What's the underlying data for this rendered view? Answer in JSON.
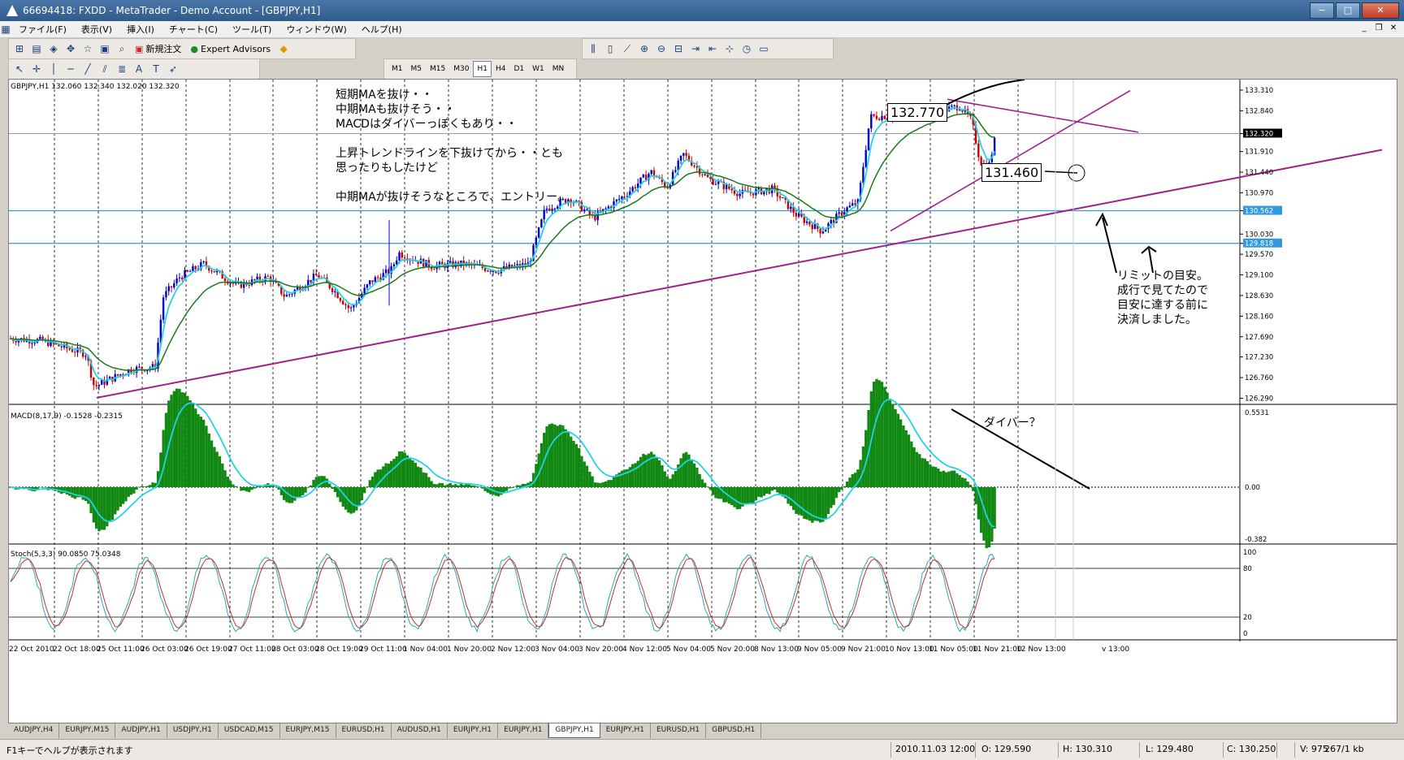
{
  "window": {
    "title": "66694418: FXDD - MetaTrader - Demo Account - [GBPJPY,H1]",
    "min": "−",
    "max": "□",
    "close": "✕"
  },
  "menu": [
    "ファイル(F)",
    "表示(V)",
    "挿入(I)",
    "チャート(C)",
    "ツール(T)",
    "ウィンドウ(W)",
    "ヘルプ(H)"
  ],
  "toolbar": {
    "new_order": "新規注文",
    "expert_advisors": "Expert Advisors",
    "timeframes": [
      "M1",
      "M5",
      "M15",
      "M30",
      "H1",
      "H4",
      "D1",
      "W1",
      "MN"
    ],
    "active_timeframe": "H1"
  },
  "chart": {
    "header": "GBPJPY,H1  132.060 132.340 132.020 132.320",
    "macd_header": "MACD(8,17,9) -0.1528 -0.2315",
    "stoch_header": "Stoch(5,3,3) 90.0850 75.0348",
    "price_axis": [
      "133.310",
      "132.840",
      "132.320",
      "131.910",
      "131.440",
      "130.970",
      "130.562",
      "130.030",
      "129.818",
      "129.570",
      "129.100",
      "128.630",
      "128.160",
      "127.690",
      "127.230",
      "126.760",
      "126.290"
    ],
    "current_price": "132.320",
    "hline_prices": [
      "130.562",
      "129.818"
    ],
    "macd_axis": [
      "0.5531",
      "0.00",
      "-0.382"
    ],
    "stoch_axis": [
      "100",
      "80",
      "20",
      "0"
    ],
    "time_axis": [
      "22 Oct 2010",
      "22 Oct 18:00",
      "25 Oct 11:00",
      "26 Oct 03:00",
      "26 Oct 19:00",
      "27 Oct 11:00",
      "28 Oct 03:00",
      "28 Oct 19:00",
      "29 Oct 11:00",
      "1 Nov 04:00",
      "1 Nov 20:00",
      "2 Nov 12:00",
      "3 Nov 04:00",
      "3 Nov 20:00",
      "4 Nov 12:00",
      "5 Nov 04:00",
      "5 Nov 20:00",
      "8 Nov 13:00",
      "9 Nov 05:00",
      "9 Nov 21:00",
      "10 Nov 13:00",
      "11 Nov 05:00",
      "11 Nov 21:00",
      "12 Nov 13:00"
    ],
    "time_axis_extra": "v 13:00",
    "colors": {
      "bull": "#0000cc",
      "bear": "#cc0000",
      "fast_ma": "#22d3e6",
      "slow_ma": "#1a7a1a",
      "trendline": "#a0208c",
      "hline": "#3399dd",
      "macd_hist": "#118811",
      "signal": "#22d3e6"
    }
  },
  "annotations": {
    "main_text": [
      "短期MAを抜け・・",
      "中期MAも抜けそう・・",
      "MACDはダイバーっぽくもあり・・",
      "",
      "上昇トレンドラインを下抜けてから・・とも",
      "思ったりもしたけど",
      "",
      "中期MAが抜けそうなところで、エントリー。"
    ],
    "label_high": "132.770",
    "label_low": "131.460",
    "limit_text": [
      "リミットの目安。",
      "成行で見てたので",
      "目安に達する前に",
      "決済しました。"
    ],
    "divergence": "ダイバー？"
  },
  "tabs": [
    "AUDJPY,H4",
    "EURJPY,M15",
    "AUDJPY,H1",
    "USDJPY,H1",
    "USDCAD,M15",
    "EURJPY,M15",
    "EURUSD,H1",
    "AUDUSD,H1",
    "EURJPY,H1",
    "EURJPY,H1",
    "GBPJPY,H1",
    "EURJPY,H1",
    "EURUSD,H1",
    "GBPUSD,H1"
  ],
  "active_tab": "GBPJPY,H1",
  "status": {
    "help": "F1キーでヘルプが表示されます",
    "time": "2010.11.03 12:00",
    "open": "O: 129.590",
    "high": "H: 130.310",
    "low": "L: 129.480",
    "close": "C: 130.250",
    "volume": "V: 975",
    "traffic": "267/1 kb"
  }
}
